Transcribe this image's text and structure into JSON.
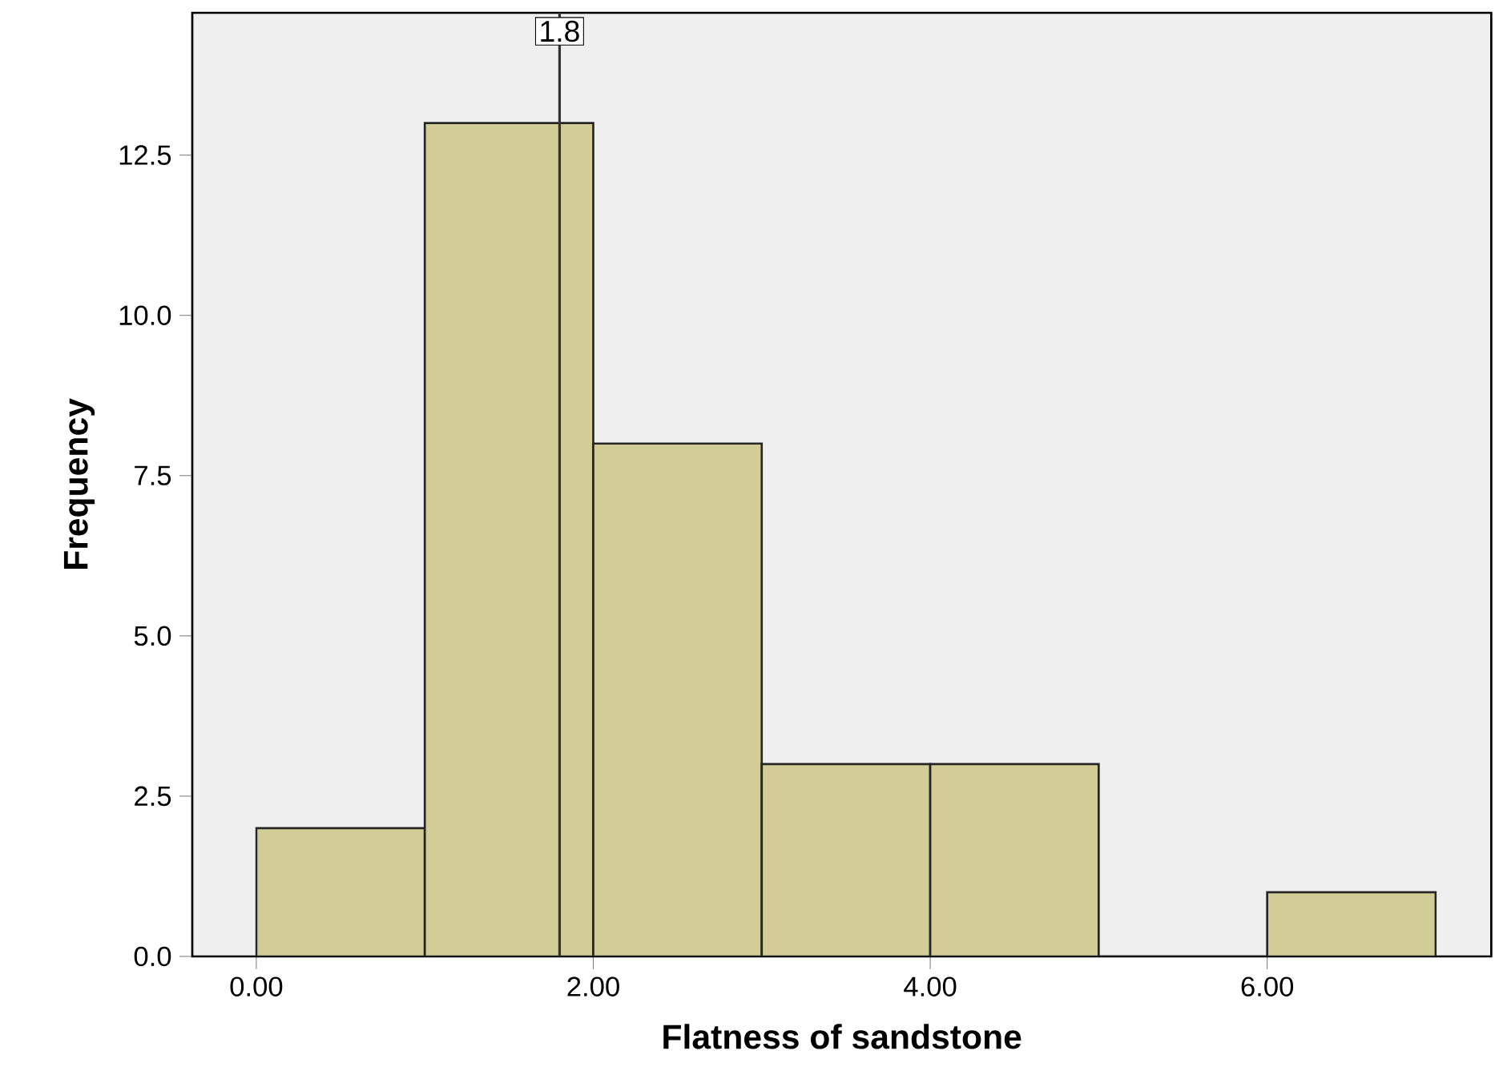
{
  "chart_data": {
    "type": "histogram",
    "xlabel": "Flatness of sandstone",
    "ylabel": "Frequency",
    "bins": [
      0,
      1,
      2,
      3,
      4,
      5,
      6,
      7
    ],
    "values": [
      2,
      13,
      8,
      3,
      3,
      0,
      1
    ],
    "color": "#d2cc96",
    "xlim": [
      -0.38,
      7.33
    ],
    "ylim": [
      0,
      14.72
    ],
    "xticks": [
      {
        "value": 0,
        "label": "0.00"
      },
      {
        "value": 2,
        "label": "2.00"
      },
      {
        "value": 4,
        "label": "4.00"
      },
      {
        "value": 6,
        "label": "6.00"
      }
    ],
    "yticks": [
      {
        "value": 0,
        "label": "0.0"
      },
      {
        "value": 2.5,
        "label": "2.5"
      },
      {
        "value": 5,
        "label": "5.0"
      },
      {
        "value": 7.5,
        "label": "7.5"
      },
      {
        "value": 10,
        "label": "10.0"
      },
      {
        "value": 12.5,
        "label": "12.5"
      }
    ],
    "ref_lines": [
      {
        "axis": "x",
        "value": 1.8,
        "label": "1.8",
        "color": "#333333"
      }
    ],
    "grid": false
  }
}
